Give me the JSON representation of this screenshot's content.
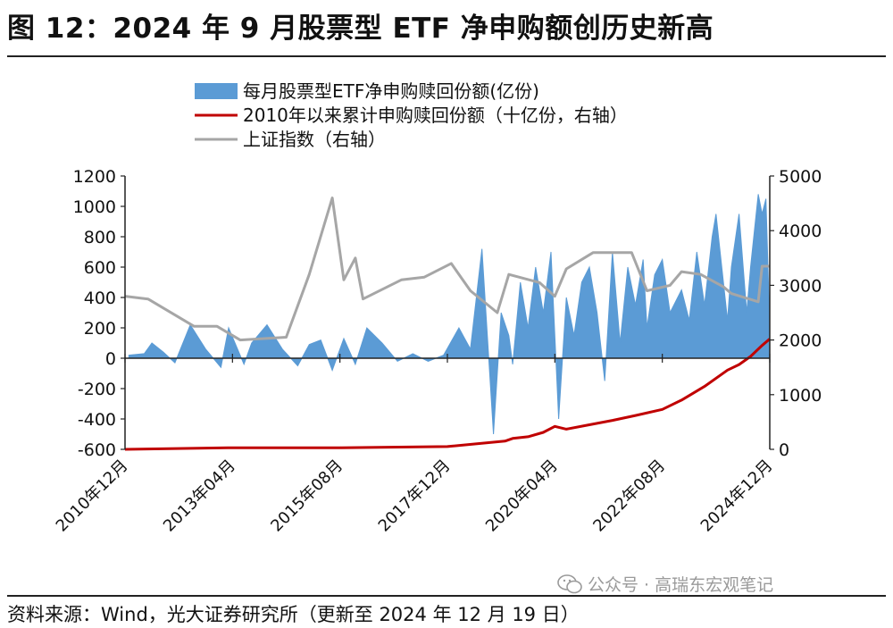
{
  "title": "图 12：2024 年 9 月股票型 ETF 净申购额创历史新高",
  "source": "资料来源：Wind，光大证券研究所（更新至 2024 年 12 月 19 日）",
  "watermark": "公众号 · 高瑞东宏观笔记",
  "chart_data": {
    "type": "bar+line",
    "x_range": [
      "2010-12",
      "2024-12"
    ],
    "x_tick_labels": [
      "2010年12月",
      "2013年04月",
      "2015年08月",
      "2017年12月",
      "2020年04月",
      "2022年08月",
      "2024年12月"
    ],
    "left_axis": {
      "ylim": [
        -600,
        1200
      ],
      "ticks": [
        "-600",
        "-400",
        "-200",
        "0",
        "200",
        "400",
        "600",
        "800",
        "1000",
        "1200"
      ]
    },
    "right_axis": {
      "ylim": [
        0,
        5000
      ],
      "ticks": [
        "0",
        "1000",
        "2000",
        "3000",
        "4000",
        "5000"
      ]
    },
    "legend": [
      "每月股票型ETF净申购赎回份额(亿份)",
      "2010年以来累计申购赎回份额（十亿份，右轴）",
      "上证指数（右轴）"
    ],
    "legend_position": "top-left",
    "colors": {
      "bars": "#5b9bd5",
      "cumulative": "#c00000",
      "index": "#a6a6a6"
    },
    "series": [
      {
        "name": "每月股票型ETF净申购赎回份额(亿份)",
        "type": "area",
        "axis": "left",
        "x": [
          "2011-01",
          "2011-05",
          "2011-07",
          "2011-10",
          "2012-01",
          "2012-05",
          "2012-09",
          "2013-01",
          "2013-03",
          "2013-07",
          "2013-09",
          "2014-01",
          "2014-05",
          "2014-09",
          "2014-12",
          "2015-03",
          "2015-06",
          "2015-09",
          "2015-12",
          "2016-03",
          "2016-07",
          "2016-11",
          "2017-03",
          "2017-07",
          "2017-11",
          "2018-03",
          "2018-06",
          "2018-09",
          "2018-12",
          "2019-02",
          "2019-04",
          "2019-05",
          "2019-07",
          "2019-09",
          "2019-11",
          "2020-01",
          "2020-03",
          "2020-05",
          "2020-07",
          "2020-09",
          "2020-11",
          "2021-01",
          "2021-03",
          "2021-05",
          "2021-07",
          "2021-09",
          "2021-11",
          "2022-01",
          "2022-03",
          "2022-04",
          "2022-06",
          "2022-08",
          "2022-10",
          "2023-01",
          "2023-03",
          "2023-05",
          "2023-07",
          "2023-09",
          "2023-10",
          "2024-01",
          "2024-02",
          "2024-04",
          "2024-06",
          "2024-07",
          "2024-09",
          "2024-10",
          "2024-11",
          "2024-12"
        ],
        "values": [
          20,
          30,
          100,
          40,
          -30,
          220,
          60,
          -60,
          200,
          -40,
          100,
          220,
          60,
          -50,
          90,
          120,
          -80,
          130,
          -40,
          200,
          100,
          -20,
          30,
          -20,
          20,
          200,
          60,
          720,
          -500,
          300,
          150,
          -40,
          500,
          200,
          600,
          300,
          700,
          -400,
          400,
          150,
          500,
          600,
          300,
          -150,
          700,
          100,
          600,
          350,
          650,
          200,
          550,
          650,
          300,
          450,
          250,
          700,
          350,
          800,
          950,
          250,
          600,
          950,
          300,
          600,
          1080,
          950,
          1050,
          200
        ]
      },
      {
        "name": "2010年以来累计申购赎回份额（十亿份，右轴）",
        "type": "line",
        "axis": "right",
        "x": [
          "2010-12",
          "2013-04",
          "2015-08",
          "2017-12",
          "2019-03",
          "2019-05",
          "2019-09",
          "2020-01",
          "2020-04",
          "2020-07",
          "2021-01",
          "2021-07",
          "2022-01",
          "2022-08",
          "2023-01",
          "2023-07",
          "2024-01",
          "2024-04",
          "2024-07",
          "2024-10",
          "2024-12"
        ],
        "values": [
          0,
          30,
          30,
          50,
          150,
          200,
          230,
          310,
          420,
          370,
          450,
          530,
          620,
          730,
          900,
          1150,
          1450,
          1550,
          1700,
          1900,
          2020
        ]
      },
      {
        "name": "上证指数（右轴）",
        "type": "line",
        "axis": "right",
        "x": [
          "2010-12",
          "2011-06",
          "2012-06",
          "2012-12",
          "2013-06",
          "2014-06",
          "2014-12",
          "2015-06",
          "2015-09",
          "2015-12",
          "2016-02",
          "2016-12",
          "2017-06",
          "2018-01",
          "2018-06",
          "2019-01",
          "2019-04",
          "2019-12",
          "2020-04",
          "2020-07",
          "2021-02",
          "2021-12",
          "2022-04",
          "2022-10",
          "2023-01",
          "2023-06",
          "2023-12",
          "2024-02",
          "2024-09",
          "2024-10",
          "2024-12"
        ],
        "values": [
          2800,
          2750,
          2250,
          2250,
          2000,
          2050,
          3200,
          4600,
          3100,
          3500,
          2750,
          3100,
          3150,
          3400,
          2900,
          2500,
          3200,
          3050,
          2800,
          3300,
          3600,
          3600,
          2900,
          3000,
          3250,
          3200,
          2970,
          2850,
          2700,
          3350,
          3350
        ]
      }
    ]
  }
}
